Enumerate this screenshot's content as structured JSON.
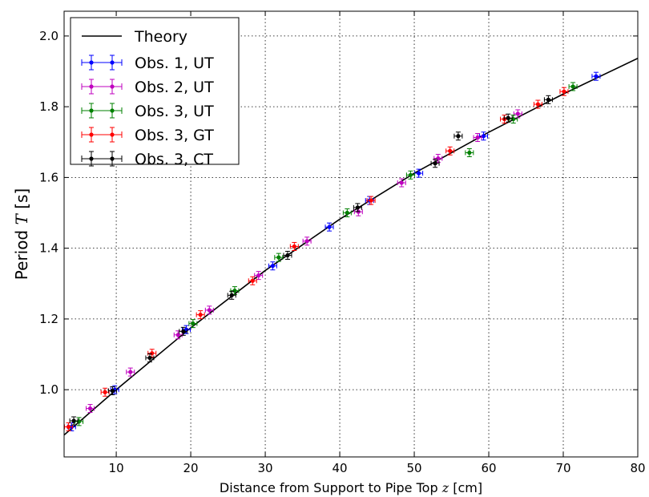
{
  "chart_data": {
    "type": "scatter",
    "xlabel_text": "Distance from Support to Pipe Top ",
    "xlabel_var": "z",
    "xlabel_unit": " [cm]",
    "ylabel_text": "Period ",
    "ylabel_var": "T",
    "ylabel_unit": " [s]",
    "xlim": [
      3,
      80
    ],
    "ylim": [
      0.81,
      2.07
    ],
    "xticks": [
      10,
      20,
      30,
      40,
      50,
      60,
      70,
      80
    ],
    "yticks": [
      1.0,
      1.2,
      1.4,
      1.6,
      1.8,
      2.0
    ],
    "ytick_labels": [
      "1.0",
      "1.2",
      "1.4",
      "1.6",
      "1.8",
      "2.0"
    ],
    "grid": true,
    "legend_position": "top-left",
    "theory": {
      "name": "Theory",
      "color": "#000000",
      "x": [
        3,
        10,
        20,
        30,
        40,
        50,
        60,
        70,
        80
      ],
      "y": [
        0.872,
        1.0,
        1.175,
        1.337,
        1.482,
        1.612,
        1.728,
        1.836,
        1.937
      ]
    },
    "series": [
      {
        "name": "Obs. 1, UT",
        "color": "#0000ff",
        "x": [
          4.0,
          9.8,
          19.4,
          31.0,
          38.6,
          44.0,
          50.6,
          59.3,
          74.4
        ],
        "y": [
          0.895,
          1.0,
          1.17,
          1.35,
          1.46,
          1.535,
          1.612,
          1.717,
          1.886
        ]
      },
      {
        "name": "Obs. 2, UT",
        "color": "#bf00bf",
        "x": [
          6.5,
          11.9,
          18.3,
          22.5,
          29.1,
          35.6,
          42.5,
          48.3,
          53.2,
          58.5,
          63.9
        ],
        "y": [
          0.947,
          1.05,
          1.155,
          1.225,
          1.323,
          1.42,
          1.503,
          1.585,
          1.654,
          1.713,
          1.78
        ]
      },
      {
        "name": "Obs. 3, UT",
        "color": "#008000",
        "x": [
          5.0,
          20.3,
          25.9,
          31.8,
          41.0,
          49.5,
          57.4,
          63.3,
          71.3
        ],
        "y": [
          0.91,
          1.187,
          1.28,
          1.374,
          1.5,
          1.607,
          1.67,
          1.765,
          1.857
        ]
      },
      {
        "name": "Obs. 3, GT",
        "color": "#ff0000",
        "x": [
          3.6,
          8.5,
          14.8,
          21.3,
          28.3,
          33.9,
          44.2,
          54.8,
          62.1,
          66.6,
          70.1
        ],
        "y": [
          0.895,
          0.993,
          1.103,
          1.212,
          1.308,
          1.405,
          1.535,
          1.675,
          1.765,
          1.807,
          1.843
        ]
      },
      {
        "name": "Obs. 3, CT",
        "color": "#000000",
        "x": [
          4.3,
          9.5,
          14.5,
          19.0,
          25.5,
          33.0,
          42.4,
          52.8,
          55.9,
          62.6,
          68.0
        ],
        "y": [
          0.912,
          0.997,
          1.09,
          1.165,
          1.267,
          1.38,
          1.515,
          1.64,
          1.717,
          1.768,
          1.82
        ]
      }
    ]
  }
}
